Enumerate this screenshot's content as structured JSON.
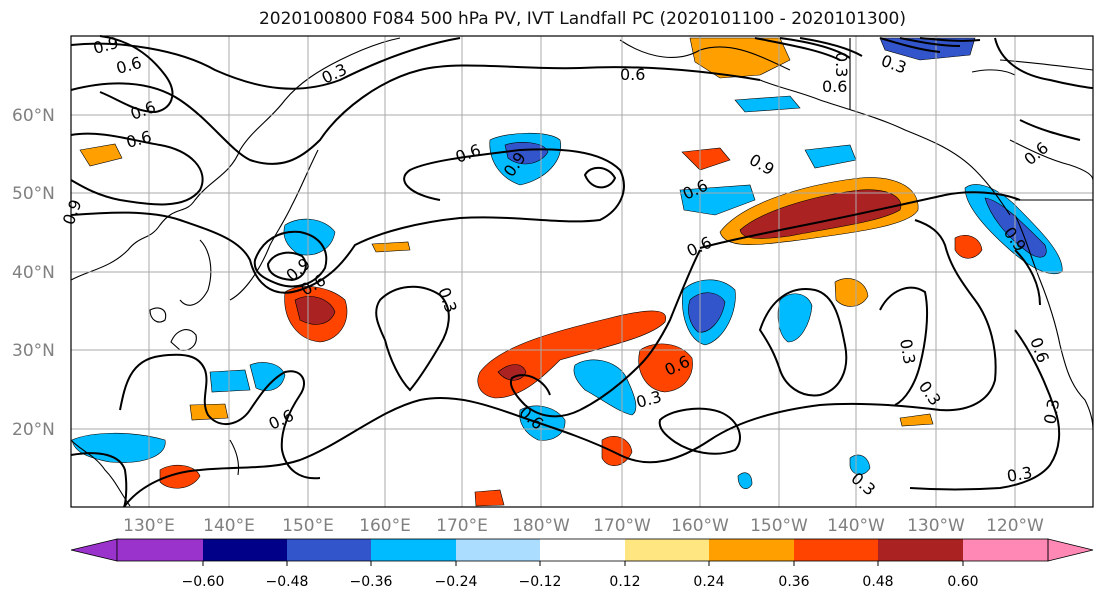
{
  "title": "2020100800 F084 500 hPa PV, IVT Landfall PC (2020101100 - 2020101300)",
  "map": {
    "lat_labels": [
      "60°N",
      "50°N",
      "40°N",
      "30°N",
      "20°N"
    ],
    "lon_labels": [
      "130°E",
      "140°E",
      "150°E",
      "160°E",
      "170°E",
      "180°W",
      "170°W",
      "160°W",
      "150°W",
      "140°W",
      "130°W",
      "120°W"
    ],
    "contour_labels": [
      "0.9",
      "0.6",
      "0.6",
      "0.6",
      "0.9",
      "0.3",
      "0.6",
      "0.6",
      "0.9",
      "0.6",
      "0.9",
      "0.6",
      "0.6",
      "0.6",
      "0.9",
      "0.3",
      "0.6",
      "0.9",
      "0.6",
      "0.3",
      "0.3",
      "0.6",
      "0.3",
      "0.3",
      "0.6",
      "0.6",
      "0.3",
      "0.3",
      "0.3",
      "0.3"
    ]
  },
  "colorbar": {
    "tick_labels": [
      "−0.60",
      "−0.48",
      "−0.36",
      "−0.24",
      "−0.12",
      "0.12",
      "0.24",
      "0.36",
      "0.48",
      "0.60"
    ],
    "colors": [
      "#9933cc",
      "#000088",
      "#3355cc",
      "#00bbff",
      "#aaddff",
      "#ffffff",
      "#ffe680",
      "#ffa000",
      "#ff4400",
      "#aa2222",
      "#ff88b4"
    ]
  }
}
